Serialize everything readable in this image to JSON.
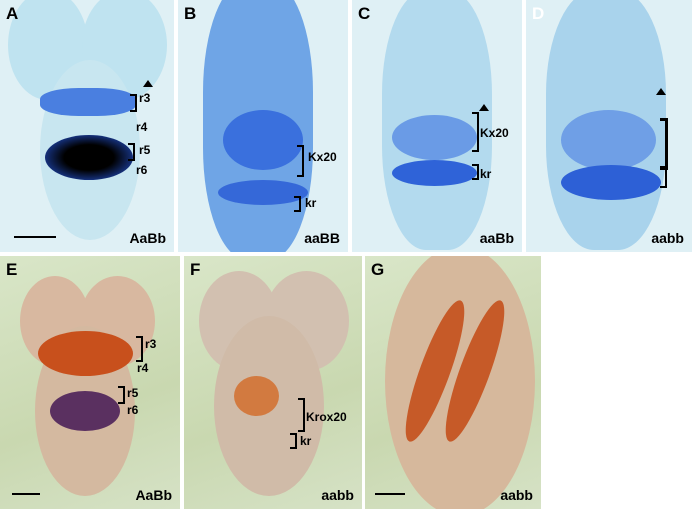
{
  "panels": [
    {
      "letter": "A",
      "genotype": "AaBb",
      "labels": [
        "r3",
        "r4",
        "r5",
        "r6"
      ]
    },
    {
      "letter": "B",
      "genotype": "aaBB",
      "labels": [
        "Kx20",
        "kr"
      ]
    },
    {
      "letter": "C",
      "genotype": "aaBb",
      "labels": [
        "Kx20",
        "kr"
      ]
    },
    {
      "letter": "D",
      "genotype": "aabb",
      "labels": []
    },
    {
      "letter": "E",
      "genotype": "AaBb",
      "labels": [
        "r3",
        "r4",
        "r5",
        "r6"
      ]
    },
    {
      "letter": "F",
      "genotype": "aabb",
      "labels": [
        "Krox20",
        "kr"
      ]
    },
    {
      "letter": "G",
      "genotype": "aabb",
      "labels": []
    }
  ],
  "colors": {
    "stain_blue": "#1f5fd0",
    "stain_red": "#c8501c",
    "background_blue": "#dff0f5",
    "background_green": "#cfdcb8"
  }
}
